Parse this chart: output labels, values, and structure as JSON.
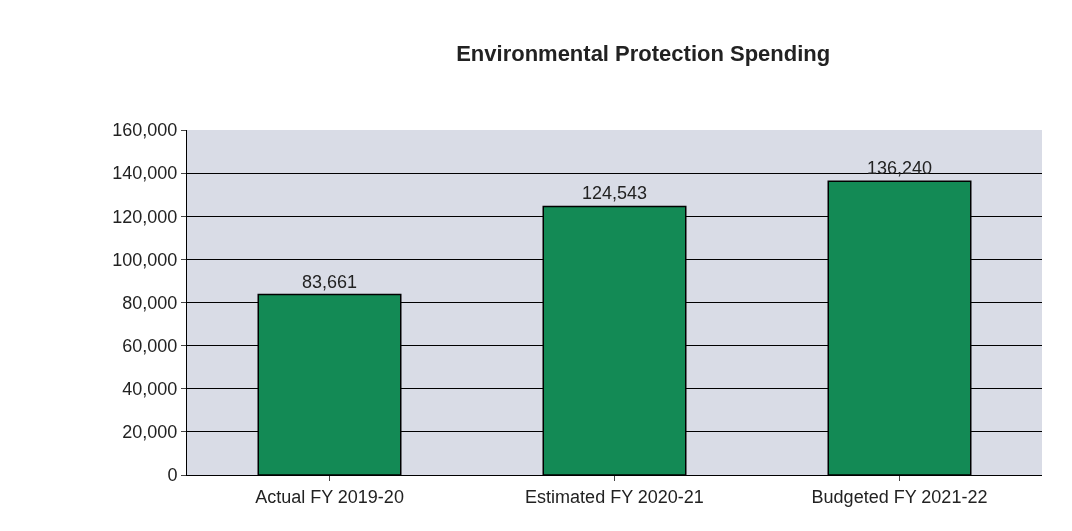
{
  "chart_data": {
    "type": "bar",
    "title": "Environmental Protection Spending",
    "categories": [
      "Actual FY 2019-20",
      "Estimated FY 2020-21",
      "Budgeted FY 2021-22"
    ],
    "values": [
      83661,
      124543,
      136240
    ],
    "color": "#138a55",
    "ylim": [
      0,
      160000
    ],
    "yticks": [
      {
        "value": 0,
        "label": "0"
      },
      {
        "value": 20000,
        "label": "20,000"
      },
      {
        "value": 40000,
        "label": "40,000"
      },
      {
        "value": 60000,
        "label": "60,000"
      },
      {
        "value": 80000,
        "label": "80,000"
      },
      {
        "value": 100000,
        "label": "100,000"
      },
      {
        "value": 120000,
        "label": "120,000"
      },
      {
        "value": 140000,
        "label": "140,000"
      },
      {
        "value": 160000,
        "label": "160,000"
      }
    ],
    "value_labels": [
      "83,661",
      "124,543",
      "136,240"
    ],
    "grid": "y",
    "legend": false
  }
}
